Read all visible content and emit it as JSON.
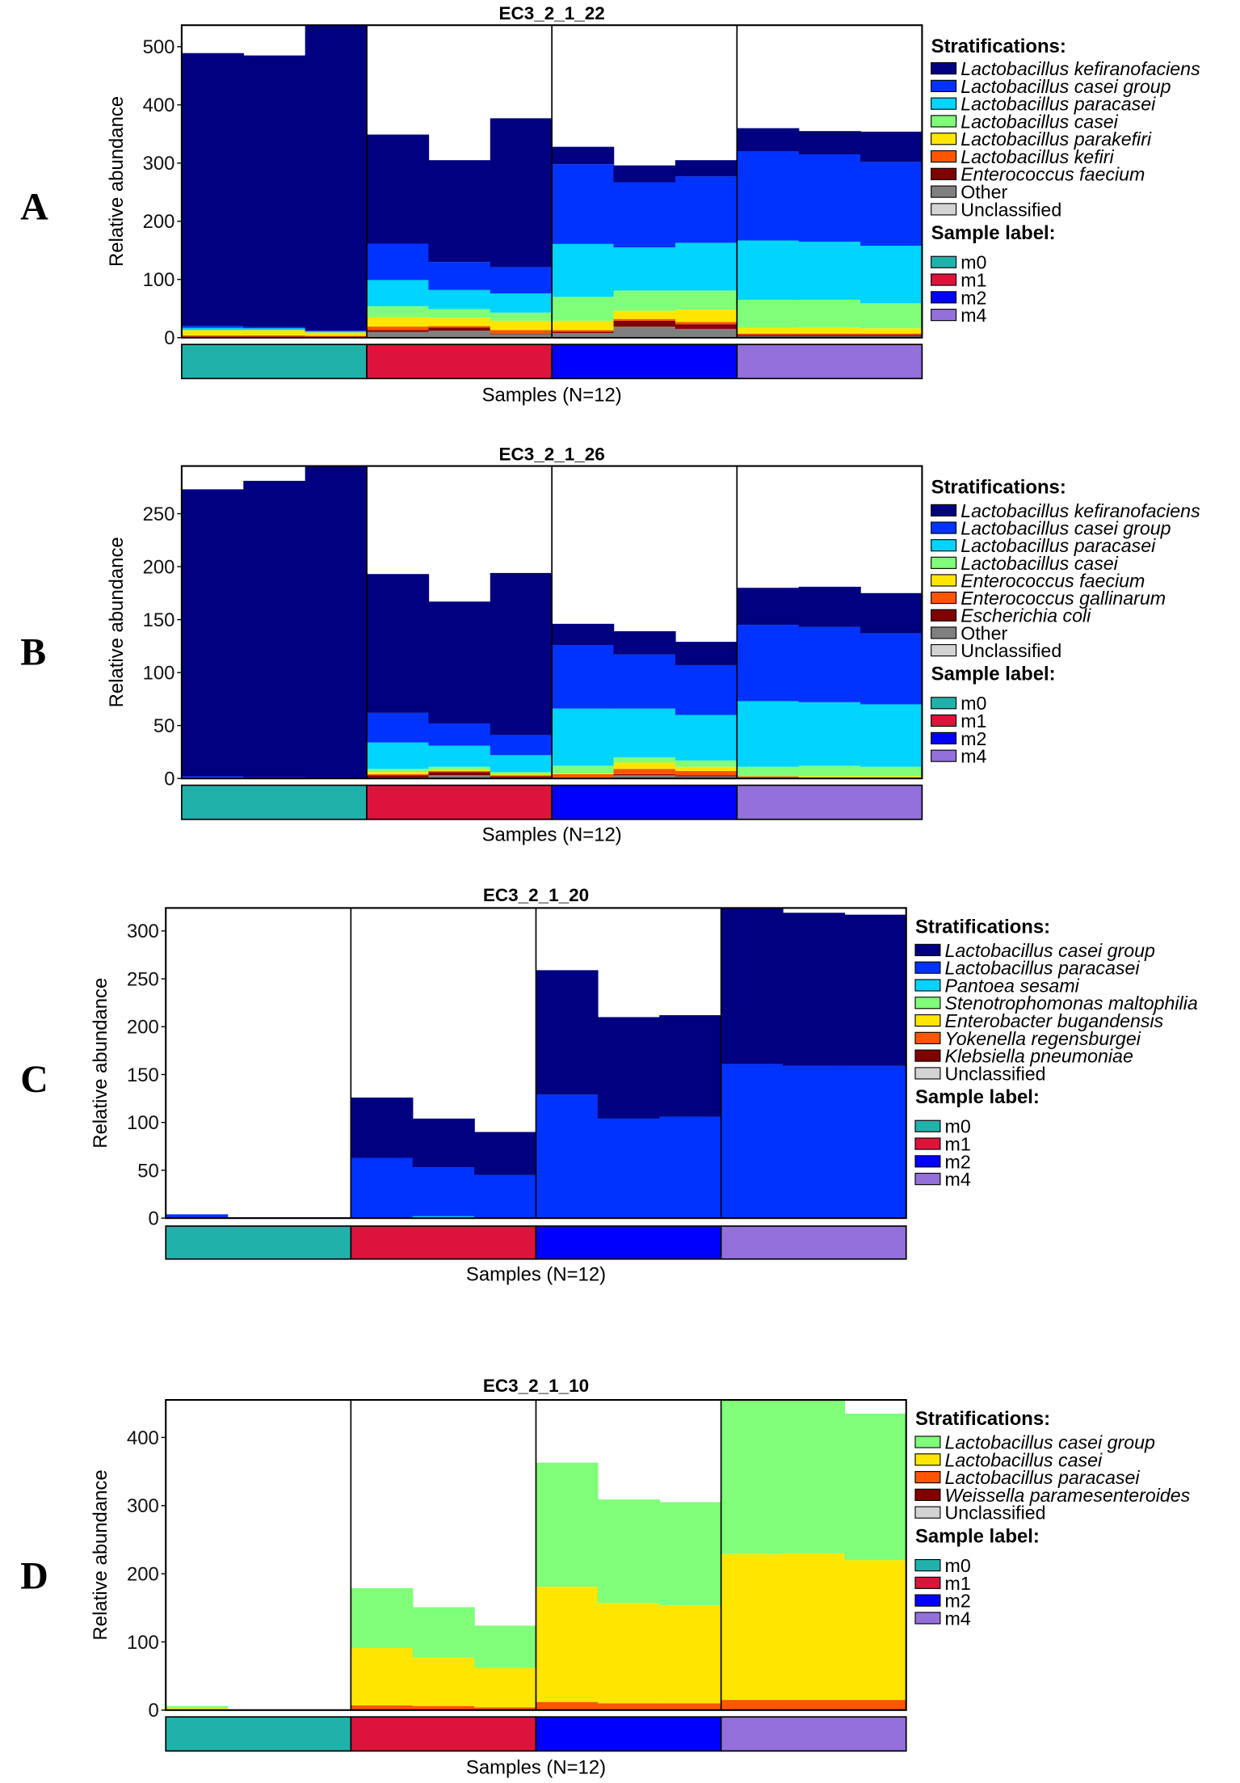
{
  "sample_groups": [
    {
      "label": "m0",
      "color": "#20b2aa"
    },
    {
      "label": "m1",
      "color": "#dc143c"
    },
    {
      "label": "m2",
      "color": "#0000ff"
    },
    {
      "label": "m4",
      "color": "#9370db"
    }
  ],
  "chart_data": [
    {
      "type": "bar",
      "stacked": true,
      "panel_letter": "A",
      "title": "EC3_2_1_22",
      "xlabel": "Samples (N=12)",
      "ylabel": "Relative abundance",
      "ylim": [
        0,
        537
      ],
      "yticks": [
        0,
        100,
        200,
        300,
        400,
        500
      ],
      "legend_title": "Stratifications:",
      "sample_legend_title": "Sample label:",
      "samples_per_group": 3,
      "series_order_note": "stack bottom to top",
      "series": [
        {
          "name": "Unclassified",
          "color": "#d3d3d3",
          "values": [
            0,
            0,
            0,
            2,
            2,
            2,
            2,
            2,
            2,
            1,
            1,
            1
          ]
        },
        {
          "name": "Other",
          "color": "#808080",
          "values": [
            0,
            0,
            0,
            8,
            10,
            4,
            6,
            17,
            13,
            2,
            2,
            2
          ]
        },
        {
          "name": "Enterococcus faecium",
          "color": "#800000",
          "values": [
            0,
            0,
            0,
            3,
            5,
            1,
            2,
            10,
            8,
            2,
            2,
            2
          ]
        },
        {
          "name": "Lactobacillus kefiri",
          "color": "#ff5500",
          "values": [
            4,
            4,
            3,
            6,
            3,
            6,
            3,
            3,
            4,
            2,
            2,
            2
          ]
        },
        {
          "name": "Lactobacillus parakefiri",
          "color": "#ffe600",
          "values": [
            9,
            9,
            6,
            16,
            14,
            16,
            16,
            14,
            21,
            10,
            11,
            9
          ]
        },
        {
          "name": "Lactobacillus casei",
          "color": "#80ff7a",
          "values": [
            0,
            0,
            0,
            19,
            15,
            14,
            41,
            35,
            33,
            48,
            47,
            43
          ]
        },
        {
          "name": "Lactobacillus paracasei",
          "color": "#00d4ff",
          "values": [
            4,
            3,
            2,
            45,
            33,
            33,
            91,
            74,
            82,
            102,
            100,
            99
          ]
        },
        {
          "name": "Lactobacillus casei group",
          "color": "#0033ff",
          "values": [
            3,
            2,
            1,
            62,
            48,
            45,
            137,
            112,
            114,
            153,
            150,
            144
          ]
        },
        {
          "name": "Lactobacillus kefiranofaciens",
          "color": "#000080",
          "values": [
            469,
            467,
            525,
            188,
            175,
            256,
            30,
            29,
            28,
            40,
            40,
            52
          ]
        }
      ]
    },
    {
      "type": "bar",
      "stacked": true,
      "panel_letter": "B",
      "title": "EC3_2_1_26",
      "xlabel": "Samples (N=12)",
      "ylabel": "Relative abundance",
      "ylim": [
        0,
        295
      ],
      "yticks": [
        0,
        50,
        100,
        150,
        200,
        250
      ],
      "legend_title": "Stratifications:",
      "sample_legend_title": "Sample label:",
      "samples_per_group": 3,
      "series": [
        {
          "name": "Unclassified",
          "color": "#d3d3d3",
          "values": [
            0,
            0,
            0,
            0,
            0,
            0,
            0,
            0,
            0,
            0,
            0,
            0
          ]
        },
        {
          "name": "Other",
          "color": "#808080",
          "values": [
            0,
            0,
            0,
            1,
            3,
            1,
            1,
            3,
            2,
            1,
            1,
            1
          ]
        },
        {
          "name": "Escherichia coli",
          "color": "#800000",
          "values": [
            0,
            0,
            0,
            2,
            3,
            1,
            0,
            1,
            1,
            0,
            0,
            0
          ]
        },
        {
          "name": "Enterococcus gallinarum",
          "color": "#ff5500",
          "values": [
            1,
            0,
            0,
            1,
            1,
            1,
            3,
            5,
            4,
            1,
            0,
            0
          ]
        },
        {
          "name": "Enterococcus faecium",
          "color": "#ffe600",
          "values": [
            0,
            0,
            0,
            2,
            1,
            1,
            1,
            6,
            4,
            0,
            1,
            1
          ]
        },
        {
          "name": "Lactobacillus casei",
          "color": "#80ff7a",
          "values": [
            0,
            0,
            0,
            3,
            3,
            2,
            7,
            5,
            6,
            9,
            10,
            9
          ]
        },
        {
          "name": "Lactobacillus paracasei",
          "color": "#00d4ff",
          "values": [
            0,
            0,
            0,
            25,
            20,
            16,
            54,
            46,
            43,
            62,
            60,
            59
          ]
        },
        {
          "name": "Lactobacillus casei group",
          "color": "#0033ff",
          "values": [
            1,
            1,
            0,
            28,
            21,
            19,
            60,
            51,
            47,
            72,
            71,
            67
          ]
        },
        {
          "name": "Lactobacillus kefiranofaciens",
          "color": "#000080",
          "values": [
            271,
            280,
            295,
            131,
            115,
            153,
            20,
            22,
            22,
            35,
            38,
            38
          ]
        }
      ]
    },
    {
      "type": "bar",
      "stacked": true,
      "panel_letter": "C",
      "title": "EC3_2_1_20",
      "xlabel": "Samples (N=12)",
      "ylabel": "Relative abundance",
      "ylim": [
        0,
        324
      ],
      "yticks": [
        0,
        50,
        100,
        150,
        200,
        250,
        300
      ],
      "legend_title": "Stratifications:",
      "sample_legend_title": "Sample label:",
      "samples_per_group": 3,
      "series": [
        {
          "name": "Unclassified",
          "color": "#d3d3d3",
          "values": [
            0,
            0,
            0,
            0,
            0,
            0,
            0,
            0,
            0,
            0,
            0,
            0
          ]
        },
        {
          "name": "Klebsiella pneumoniae",
          "color": "#800000",
          "values": [
            0,
            0,
            0,
            0,
            0,
            0,
            0,
            0,
            0,
            0,
            0,
            0
          ]
        },
        {
          "name": "Yokenella regensburgei",
          "color": "#ff5500",
          "values": [
            0,
            0,
            0,
            0,
            0,
            0,
            0,
            0,
            0,
            0,
            0,
            0
          ]
        },
        {
          "name": "Enterobacter bugandensis",
          "color": "#ffe600",
          "values": [
            0,
            0,
            0,
            0,
            0,
            0,
            0,
            0,
            0,
            0,
            0,
            0
          ]
        },
        {
          "name": "Stenotrophomonas maltophilia",
          "color": "#80ff7a",
          "values": [
            0,
            0,
            0,
            0,
            0,
            0,
            0,
            0,
            0,
            0,
            0,
            0
          ]
        },
        {
          "name": "Pantoea sesami",
          "color": "#00d4ff",
          "values": [
            0,
            0,
            0,
            0,
            2,
            0,
            0,
            0,
            0,
            0,
            0,
            0
          ]
        },
        {
          "name": "Lactobacillus paracasei",
          "color": "#0033ff",
          "values": [
            4,
            1,
            1,
            63,
            51,
            45,
            129,
            104,
            106,
            161,
            159,
            159
          ]
        },
        {
          "name": "Lactobacillus casei group",
          "color": "#000080",
          "values": [
            0,
            0,
            0,
            63,
            51,
            45,
            130,
            106,
            106,
            163,
            160,
            158
          ]
        }
      ]
    },
    {
      "type": "bar",
      "stacked": true,
      "panel_letter": "D",
      "title": "EC3_2_1_10",
      "xlabel": "Samples (N=12)",
      "ylabel": "Relative abundance",
      "ylim": [
        0,
        455
      ],
      "yticks": [
        0,
        100,
        200,
        300,
        400
      ],
      "legend_title": "Stratifications:",
      "sample_legend_title": "Sample label:",
      "samples_per_group": 3,
      "series": [
        {
          "name": "Unclassified",
          "color": "#d3d3d3",
          "values": [
            0,
            0,
            0,
            0,
            0,
            0,
            0,
            0,
            0,
            0,
            0,
            0
          ]
        },
        {
          "name": "Weissella paramesenteroides",
          "color": "#800000",
          "values": [
            0,
            0,
            0,
            0,
            0,
            0,
            0,
            0,
            0,
            0,
            0,
            0
          ]
        },
        {
          "name": "Lactobacillus paracasei",
          "color": "#ff5500",
          "values": [
            0,
            0,
            0,
            7,
            6,
            4,
            12,
            10,
            10,
            15,
            15,
            15
          ]
        },
        {
          "name": "Lactobacillus casei",
          "color": "#ffe600",
          "values": [
            3,
            0,
            0,
            84,
            71,
            58,
            169,
            147,
            144,
            214,
            215,
            205
          ]
        },
        {
          "name": "Lactobacillus casei group",
          "color": "#80ff7a",
          "values": [
            3,
            0,
            0,
            88,
            74,
            62,
            182,
            152,
            151,
            227,
            226,
            215
          ]
        }
      ]
    }
  ]
}
